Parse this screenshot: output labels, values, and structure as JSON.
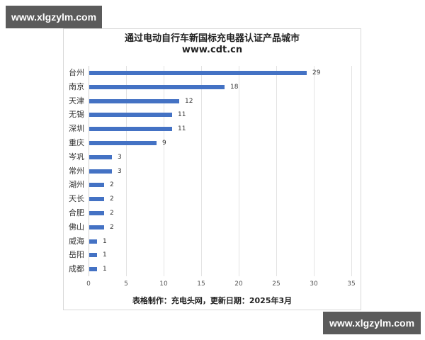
{
  "watermarks": {
    "top": "www.xlgzylm.com",
    "bottom": "www.xlgzylm.com"
  },
  "chart": {
    "title": "通过电动自行车新国标充电器认证产品城市",
    "subtitle": "www.cdt.cn",
    "footer": "表格制作：充电头网，更新日期：2025年3月",
    "bar_color": "#4472c4"
  },
  "chart_data": {
    "type": "bar",
    "orientation": "horizontal",
    "title": "通过电动自行车新国标充电器认证产品城市",
    "subtitle": "www.cdt.cn",
    "categories": [
      "台州",
      "南京",
      "天津",
      "无锡",
      "深圳",
      "重庆",
      "岑巩",
      "常州",
      "湖州",
      "天长",
      "合肥",
      "佛山",
      "威海",
      "岳阳",
      "成都"
    ],
    "values": [
      29,
      18,
      12,
      11,
      11,
      9,
      3,
      3,
      2,
      2,
      2,
      2,
      1,
      1,
      1
    ],
    "xlabel": "",
    "ylabel": "",
    "xlim": [
      0,
      35
    ],
    "x_ticks": [
      "0",
      "5",
      "10",
      "15",
      "20",
      "25",
      "30",
      "35"
    ],
    "grid": "vertical",
    "data_labels": true,
    "legend": "none",
    "footnote": "表格制作：充电头网，更新日期：2025年3月"
  }
}
